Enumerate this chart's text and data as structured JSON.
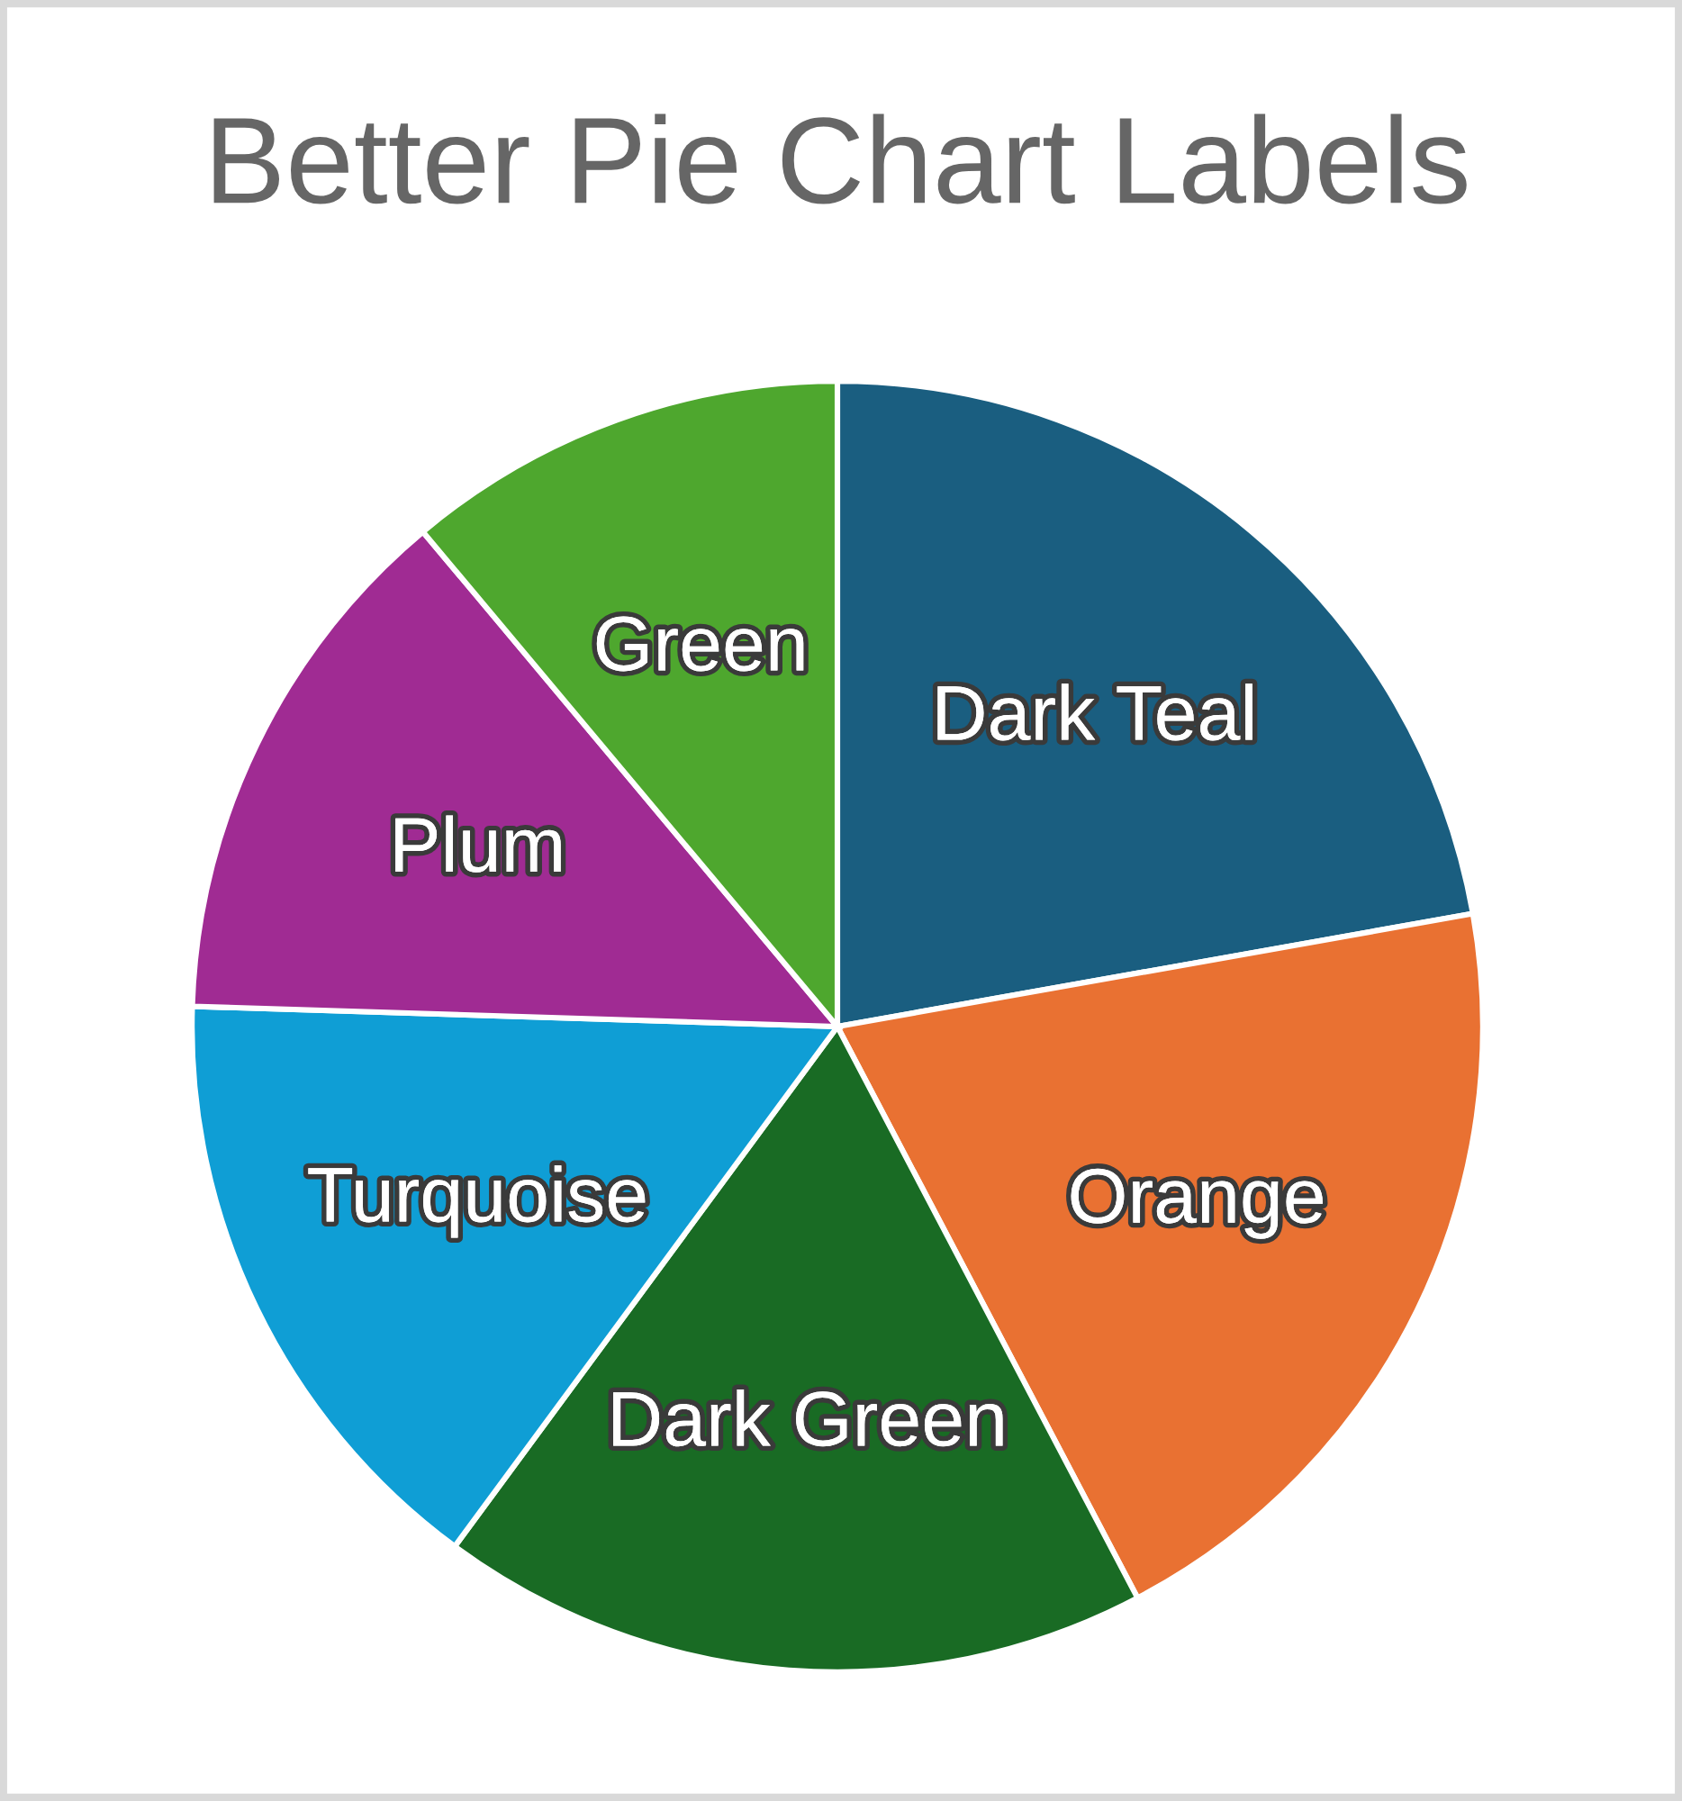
{
  "chart_data": {
    "type": "pie",
    "title": "Better Pie Chart Labels",
    "categories": [
      "Dark Teal",
      "Orange",
      "Dark Green",
      "Turquoise",
      "Plum",
      "Green"
    ],
    "values": [
      22.2,
      20.1,
      17.8,
      15.4,
      13.4,
      11.1
    ],
    "colors": [
      "#1a5e80",
      "#e97132",
      "#196b24",
      "#0f9ed5",
      "#a02b93",
      "#4ea72e"
    ],
    "legend": false
  }
}
